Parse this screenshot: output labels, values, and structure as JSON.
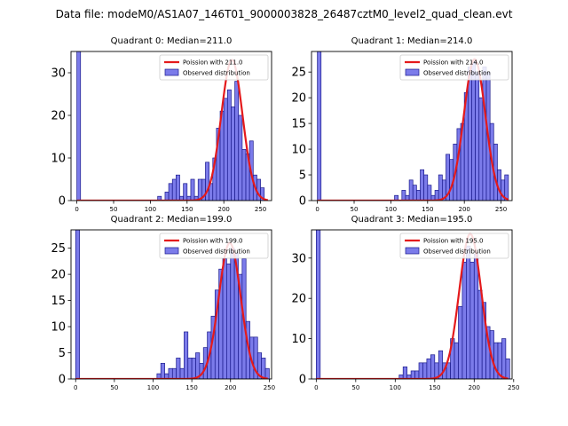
{
  "figure": {
    "title": "Data file: modeM0/AS1A07_146T01_9000003828_26487cztM0_level2_quad_clean.evt"
  },
  "colors": {
    "bar_fill": "#7b7bea",
    "bar_edge": "#1a1a8c",
    "curve": "#e41a1c"
  },
  "chart_data": [
    {
      "type": "bar",
      "title": "Quadrant 0: Median=211.0",
      "legend": [
        "Poission with 211.0",
        "Observed distribution"
      ],
      "legend_position": "top-right",
      "xlim": [
        -8,
        265
      ],
      "ylim": [
        0,
        35
      ],
      "xticks": [
        0,
        50,
        100,
        150,
        200,
        250
      ],
      "yticks": [
        0,
        10,
        20,
        30
      ],
      "bin_width": 5,
      "bin_starts": [
        0,
        110,
        120,
        125,
        130,
        135,
        140,
        145,
        150,
        155,
        160,
        165,
        170,
        175,
        180,
        185,
        190,
        195,
        200,
        205,
        210,
        215,
        220,
        225,
        230,
        235,
        240,
        245,
        250
      ],
      "counts": [
        35,
        1,
        2,
        4,
        5,
        6,
        1,
        4,
        1,
        5,
        1,
        5,
        5,
        9,
        4,
        10,
        17,
        21,
        24,
        26,
        22,
        28,
        20,
        12,
        11,
        14,
        6,
        5,
        3
      ],
      "poisson_mean": 211.0,
      "poisson_peak": 33
    },
    {
      "type": "bar",
      "title": "Quadrant 1: Median=214.0",
      "legend": [
        "Poission with 214.0",
        "Observed distribution"
      ],
      "legend_position": "top-right",
      "xlim": [
        -8,
        265
      ],
      "ylim": [
        0,
        29
      ],
      "xticks": [
        0,
        50,
        100,
        150,
        200,
        250
      ],
      "yticks": [
        0,
        5,
        10,
        15,
        20,
        25
      ],
      "bin_width": 5,
      "bin_starts": [
        0,
        105,
        115,
        120,
        125,
        130,
        135,
        140,
        145,
        150,
        155,
        160,
        165,
        170,
        175,
        180,
        185,
        190,
        195,
        200,
        205,
        210,
        215,
        220,
        225,
        230,
        235,
        240,
        245,
        250,
        255
      ],
      "counts": [
        29,
        1,
        2,
        1,
        4,
        3,
        2,
        6,
        5,
        3,
        1,
        2,
        5,
        4,
        9,
        8,
        11,
        14,
        15,
        21,
        26,
        27,
        25,
        20,
        26,
        25,
        15,
        11,
        6,
        4,
        5
      ],
      "poisson_mean": 214.0,
      "poisson_peak": 27.5
    },
    {
      "type": "bar",
      "title": "Quadrant 2: Median=199.0",
      "legend": [
        "Poission with 199.0",
        "Observed distribution"
      ],
      "legend_position": "top-right",
      "xlim": [
        -6,
        253
      ],
      "ylim": [
        0,
        28.5
      ],
      "xticks": [
        0,
        50,
        100,
        150,
        200,
        250
      ],
      "yticks": [
        0,
        5,
        10,
        15,
        20,
        25
      ],
      "bin_width": 5,
      "bin_starts": [
        0,
        105,
        110,
        115,
        120,
        125,
        130,
        135,
        140,
        145,
        150,
        155,
        160,
        165,
        170,
        175,
        180,
        185,
        190,
        195,
        200,
        205,
        210,
        215,
        220,
        225,
        230,
        235,
        240,
        245
      ],
      "counts": [
        28.5,
        1,
        3,
        1,
        2,
        2,
        4,
        2,
        9,
        4,
        4,
        5,
        3,
        6,
        9,
        12,
        17,
        21,
        23,
        22,
        25,
        24,
        20,
        23,
        11,
        8,
        8,
        5,
        4,
        2
      ],
      "poisson_mean": 199.0,
      "poisson_peak": 26
    },
    {
      "type": "bar",
      "title": "Quadrant 3: Median=195.0",
      "legend": [
        "Poission with 195.0",
        "Observed distribution"
      ],
      "legend_position": "top-right",
      "xlim": [
        -6,
        248
      ],
      "ylim": [
        0,
        37
      ],
      "xticks": [
        0,
        50,
        100,
        150,
        200,
        250
      ],
      "yticks": [
        0,
        10,
        20,
        30
      ],
      "bin_width": 5,
      "bin_starts": [
        0,
        105,
        110,
        115,
        120,
        125,
        130,
        135,
        140,
        145,
        150,
        155,
        160,
        165,
        170,
        175,
        180,
        185,
        190,
        195,
        200,
        205,
        210,
        215,
        220,
        225,
        230,
        235,
        240
      ],
      "counts": [
        37,
        1,
        3,
        1,
        2,
        2,
        4,
        4,
        5,
        6,
        4,
        7,
        4,
        4,
        10,
        9,
        18,
        29,
        33,
        29,
        31,
        22,
        19,
        13,
        12,
        9,
        9,
        10,
        5
      ],
      "poisson_mean": 195.0,
      "poisson_peak": 36
    }
  ]
}
